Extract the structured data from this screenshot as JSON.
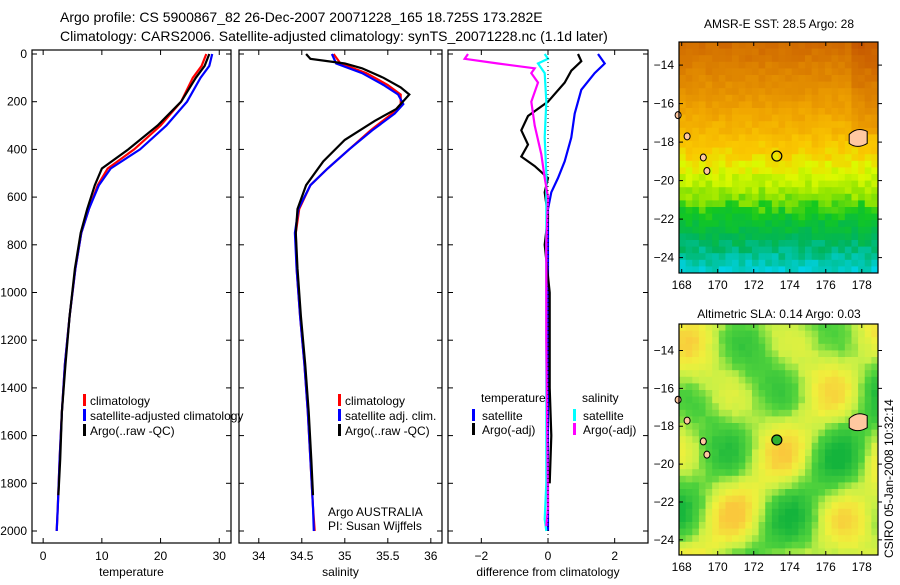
{
  "header": {
    "title_line1": "Argo profile: CS 5900867_82 26-Dec-2007 20071228_165 18.725S 173.282E",
    "title_line2": "Climatology: CARS2006. Satellite-adjusted climatology: synTS_20071228.nc (1.1d later)"
  },
  "colors": {
    "climatology": "#ff0000",
    "satellite": "#0000ff",
    "argo": "#000000",
    "sal_satellite": "#00ffff",
    "sal_argo": "#ff00ff"
  },
  "credit": "CSIRO 05-Jan-2008 10:32:14",
  "chart_data": [
    {
      "type": "line",
      "xlabel": "temperature",
      "ylabel": "",
      "xlim": [
        -1.9,
        32
      ],
      "ylim": [
        2060,
        -15
      ],
      "xticks": [
        0,
        10,
        20,
        30
      ],
      "yticks": [
        0,
        200,
        400,
        600,
        800,
        1000,
        1200,
        1400,
        1600,
        1800,
        2000
      ],
      "legend": [
        "climatology",
        "satellite-adjusted climatology",
        "Argo(..raw -QC)"
      ],
      "series": [
        {
          "name": "climatology",
          "color": "#ff0000",
          "points": [
            [
              27.8,
              0
            ],
            [
              27,
              50
            ],
            [
              25.5,
              100
            ],
            [
              23.5,
              200
            ],
            [
              20,
              300
            ],
            [
              15.5,
              400
            ],
            [
              11,
              480
            ],
            [
              9.3,
              550
            ],
            [
              7.8,
              650
            ],
            [
              6.5,
              750
            ],
            [
              5.5,
              900
            ],
            [
              4.5,
              1100
            ],
            [
              3.7,
              1300
            ],
            [
              3.2,
              1500
            ],
            [
              2.8,
              1700
            ],
            [
              2.5,
              1900
            ],
            [
              2.3,
              2000
            ]
          ]
        },
        {
          "name": "satellite-adjusted climatology",
          "color": "#0000ff",
          "points": [
            [
              28.8,
              0
            ],
            [
              28.3,
              50
            ],
            [
              26.8,
              100
            ],
            [
              24.5,
              200
            ],
            [
              21,
              300
            ],
            [
              16.5,
              400
            ],
            [
              11.5,
              480
            ],
            [
              9.5,
              550
            ],
            [
              7.8,
              650
            ],
            [
              6.5,
              750
            ],
            [
              5.5,
              900
            ],
            [
              4.5,
              1100
            ],
            [
              3.7,
              1300
            ],
            [
              3.2,
              1500
            ],
            [
              2.8,
              1700
            ],
            [
              2.5,
              1900
            ],
            [
              2.3,
              2000
            ]
          ]
        },
        {
          "name": "Argo(..raw -QC)",
          "color": "#000000",
          "points": [
            [
              28.3,
              0
            ],
            [
              27.5,
              50
            ],
            [
              26,
              100
            ],
            [
              23.5,
              200
            ],
            [
              19.5,
              300
            ],
            [
              14.5,
              400
            ],
            [
              10,
              480
            ],
            [
              8.8,
              550
            ],
            [
              7.5,
              650
            ],
            [
              6.4,
              750
            ],
            [
              5.4,
              900
            ],
            [
              4.5,
              1100
            ],
            [
              3.8,
              1300
            ],
            [
              3.2,
              1500
            ],
            [
              2.9,
              1700
            ],
            [
              2.6,
              1850
            ]
          ]
        }
      ]
    },
    {
      "type": "line",
      "xlabel": "salinity",
      "ylabel": "",
      "xlim": [
        33.77,
        36.13
      ],
      "ylim": [
        2060,
        -15
      ],
      "xticks": [
        34,
        34.5,
        35,
        35.5,
        36
      ],
      "legend": [
        "climatology",
        "satellite adj. clim.",
        "Argo(..raw -QC)"
      ],
      "annotation": [
        "Argo AUSTRALIA",
        "PI: Susan Wijffels"
      ],
      "series": [
        {
          "name": "climatology",
          "color": "#ff0000",
          "points": [
            [
              34.87,
              0
            ],
            [
              34.95,
              40
            ],
            [
              35.25,
              80
            ],
            [
              35.5,
              130
            ],
            [
              35.65,
              170
            ],
            [
              35.65,
              210
            ],
            [
              35.55,
              250
            ],
            [
              35.3,
              320
            ],
            [
              35.05,
              400
            ],
            [
              34.8,
              480
            ],
            [
              34.6,
              550
            ],
            [
              34.47,
              650
            ],
            [
              34.43,
              750
            ],
            [
              34.44,
              900
            ],
            [
              34.48,
              1100
            ],
            [
              34.53,
              1300
            ],
            [
              34.57,
              1500
            ],
            [
              34.6,
              1700
            ],
            [
              34.63,
              1900
            ],
            [
              34.65,
              2000
            ]
          ]
        },
        {
          "name": "satellite adj. clim.",
          "color": "#0000ff",
          "points": [
            [
              34.85,
              0
            ],
            [
              34.9,
              40
            ],
            [
              35.2,
              80
            ],
            [
              35.45,
              130
            ],
            [
              35.62,
              170
            ],
            [
              35.68,
              210
            ],
            [
              35.58,
              250
            ],
            [
              35.32,
              320
            ],
            [
              35.05,
              400
            ],
            [
              34.8,
              480
            ],
            [
              34.6,
              550
            ],
            [
              34.46,
              650
            ],
            [
              34.42,
              750
            ],
            [
              34.44,
              900
            ],
            [
              34.48,
              1100
            ],
            [
              34.53,
              1300
            ],
            [
              34.57,
              1500
            ],
            [
              34.6,
              1700
            ],
            [
              34.63,
              1900
            ],
            [
              34.64,
              2000
            ]
          ]
        },
        {
          "name": "Argo(..raw -QC)",
          "color": "#000000",
          "points": [
            [
              34.55,
              0
            ],
            [
              34.6,
              20
            ],
            [
              35.0,
              40
            ],
            [
              35.2,
              60
            ],
            [
              35.45,
              100
            ],
            [
              35.65,
              140
            ],
            [
              35.75,
              170
            ],
            [
              35.6,
              230
            ],
            [
              35.35,
              280
            ],
            [
              35.0,
              360
            ],
            [
              34.75,
              450
            ],
            [
              34.55,
              550
            ],
            [
              34.45,
              650
            ],
            [
              34.43,
              750
            ],
            [
              34.45,
              900
            ],
            [
              34.49,
              1100
            ],
            [
              34.54,
              1300
            ],
            [
              34.58,
              1500
            ],
            [
              34.61,
              1700
            ],
            [
              34.63,
              1850
            ]
          ]
        }
      ]
    },
    {
      "type": "line",
      "xlabel": "difference from climatology",
      "ylabel": "",
      "xlim": [
        -3,
        3
      ],
      "ylim": [
        2060,
        -15
      ],
      "xticks": [
        -2,
        0,
        2
      ],
      "legend_headers": [
        "temperature",
        "salinity"
      ],
      "legend": [
        "satellite",
        "Argo(-adj)",
        "satellite",
        "Argo(-adj)"
      ],
      "series": [
        {
          "name": "temperature satellite",
          "color": "#0000ff",
          "points": [
            [
              1.5,
              0
            ],
            [
              1.7,
              40
            ],
            [
              1.4,
              80
            ],
            [
              1.0,
              150
            ],
            [
              0.8,
              250
            ],
            [
              0.7,
              350
            ],
            [
              0.5,
              450
            ],
            [
              0.3,
              520
            ],
            [
              0.1,
              580
            ],
            [
              0,
              650
            ],
            [
              0,
              1000
            ],
            [
              0,
              2000
            ]
          ]
        },
        {
          "name": "temperature Argo(-adj)",
          "color": "#000000",
          "points": [
            [
              0.9,
              0
            ],
            [
              1.0,
              30
            ],
            [
              0.7,
              70
            ],
            [
              0.5,
              120
            ],
            [
              0,
              200
            ],
            [
              -0.6,
              260
            ],
            [
              -0.8,
              320
            ],
            [
              -0.6,
              380
            ],
            [
              -0.8,
              430
            ],
            [
              -0.4,
              470
            ],
            [
              0,
              520
            ],
            [
              -0.1,
              580
            ],
            [
              0,
              680
            ],
            [
              -0.1,
              800
            ],
            [
              0.05,
              1000
            ],
            [
              0.05,
              1400
            ],
            [
              0.1,
              1600
            ],
            [
              0.05,
              1800
            ]
          ]
        },
        {
          "name": "salinity satellite",
          "color": "#00ffff",
          "points": [
            [
              -0.1,
              0
            ],
            [
              0,
              20
            ],
            [
              -0.3,
              40
            ],
            [
              -0.1,
              80
            ],
            [
              -0.05,
              200
            ],
            [
              -0.1,
              350
            ],
            [
              -0.05,
              500
            ],
            [
              -0.05,
              700
            ],
            [
              -0.05,
              1200
            ],
            [
              -0.05,
              1800
            ],
            [
              -0.1,
              1950
            ],
            [
              -0.05,
              2000
            ]
          ]
        },
        {
          "name": "salinity Argo(-adj)",
          "color": "#ff00ff",
          "points": [
            [
              -2.4,
              0
            ],
            [
              -2.5,
              20
            ],
            [
              -1.5,
              40
            ],
            [
              -0.4,
              60
            ],
            [
              -0.5,
              80
            ],
            [
              -0.3,
              120
            ],
            [
              -0.5,
              200
            ],
            [
              -0.4,
              300
            ],
            [
              -0.2,
              420
            ],
            [
              -0.1,
              520
            ],
            [
              0,
              600
            ],
            [
              -0.05,
              800
            ],
            [
              -0.05,
              1200
            ],
            [
              0,
              1900
            ],
            [
              -0.05,
              1980
            ]
          ]
        }
      ]
    },
    {
      "type": "heatmap",
      "title": "AMSR-E SST: 28.5 Argo: 28",
      "xlim": [
        167.85,
        178.9
      ],
      "ylim": [
        -12.8,
        -24.8
      ],
      "xticks": [
        168,
        170,
        172,
        174,
        176,
        178
      ],
      "yticks": [
        -14,
        -16,
        -18,
        -20,
        -22,
        -24
      ],
      "marker": [
        173.282,
        -18.725
      ]
    },
    {
      "type": "heatmap",
      "title": "Altimetric SLA: 0.14 Argo: 0.03",
      "xlim": [
        167.85,
        178.9
      ],
      "ylim": [
        -12.6,
        -24.8
      ],
      "xticks": [
        168,
        170,
        172,
        174,
        176,
        178
      ],
      "yticks": [
        -14,
        -16,
        -18,
        -20,
        -22,
        -24
      ],
      "marker": [
        173.282,
        -18.725
      ]
    }
  ]
}
